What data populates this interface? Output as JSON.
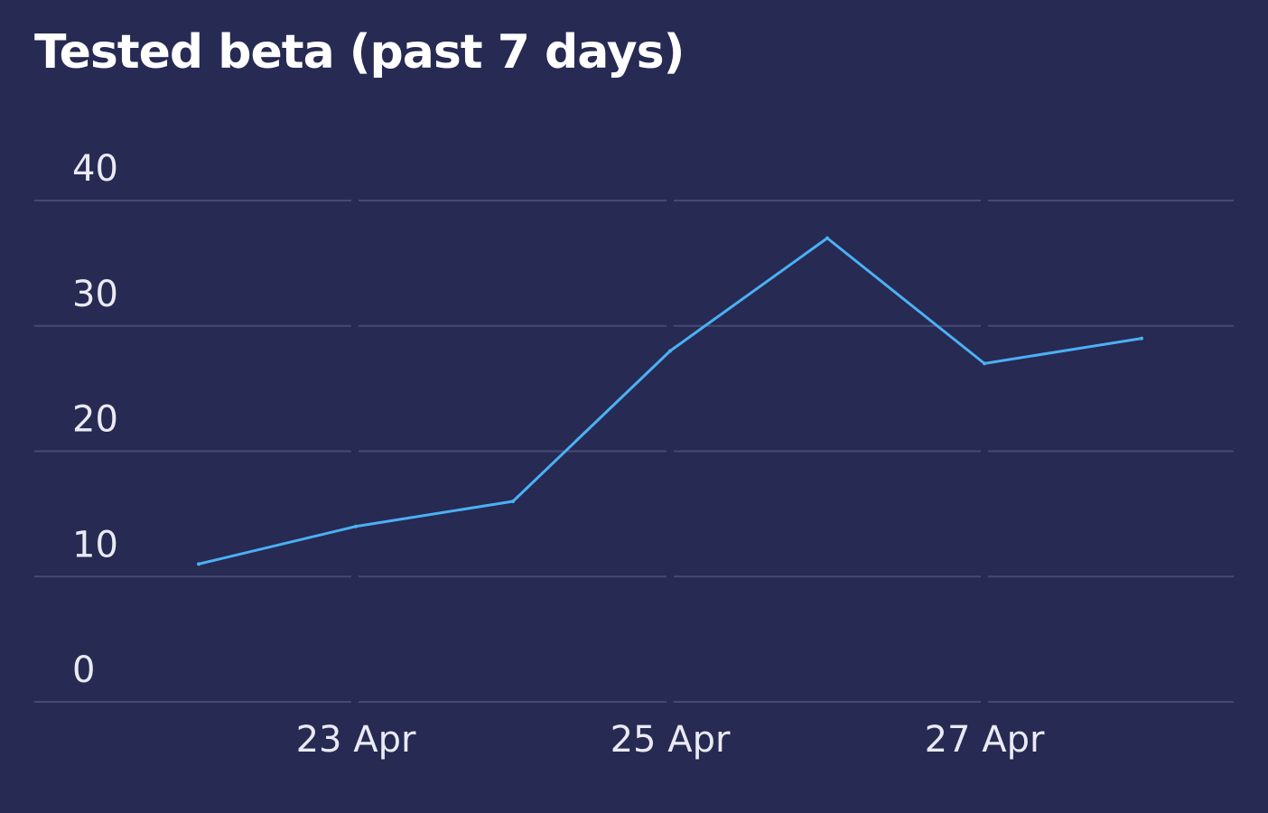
{
  "title": "Tested beta (past 7 days)",
  "colors": {
    "background": "#272a52",
    "grid": "#474a78",
    "line": "#4bb0f5",
    "text": "#e9eaf4"
  },
  "chart_data": {
    "type": "line",
    "title": "Tested beta (past 7 days)",
    "xlabel": "",
    "ylabel": "",
    "grid": true,
    "legend": "none",
    "x": [
      "22 Apr",
      "23 Apr",
      "24 Apr",
      "25 Apr",
      "26 Apr",
      "27 Apr",
      "28 Apr"
    ],
    "x_tick_labels": [
      "23 Apr",
      "25 Apr",
      "27 Apr"
    ],
    "y_ticks": [
      0,
      10,
      20,
      30,
      40
    ],
    "ylim": [
      0,
      40
    ],
    "series": [
      {
        "values": [
          11,
          14,
          16,
          28,
          37,
          27,
          29
        ]
      }
    ]
  }
}
